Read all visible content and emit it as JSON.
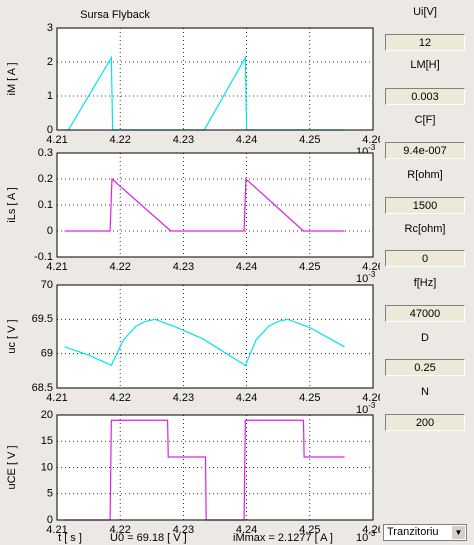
{
  "chart_data": [
    {
      "type": "line",
      "title": "Sursa Flyback",
      "ylabel": "iM [ A ]",
      "color": "#00e5ee",
      "x": [
        4.2112,
        4.2118,
        4.2186,
        4.2188,
        4.2333,
        4.2398,
        4.24,
        4.2555
      ],
      "values": [
        0,
        0,
        2.13,
        0,
        0,
        2.13,
        0,
        0
      ],
      "xlim": [
        4.21,
        4.26
      ],
      "xticks": [
        4.21,
        4.22,
        4.23,
        4.24,
        4.25,
        4.26
      ],
      "ylim": [
        0,
        3
      ],
      "yticks": [
        0,
        1,
        2,
        3
      ],
      "grid": true,
      "x_offset": {
        "base": "10",
        "power": "-3"
      }
    },
    {
      "type": "line",
      "ylabel": "iLs [ A ]",
      "color": "#e020e0",
      "x": [
        4.2112,
        4.2184,
        4.2187,
        4.228,
        4.2396,
        4.2399,
        4.249,
        4.2555
      ],
      "values": [
        0,
        0,
        0.2,
        0,
        0,
        0.2,
        0,
        0
      ],
      "xlim": [
        4.21,
        4.26
      ],
      "xticks": [
        4.21,
        4.22,
        4.23,
        4.24,
        4.25,
        4.26
      ],
      "ylim": [
        -0.1,
        0.3
      ],
      "yticks": [
        -0.1,
        0,
        0.1,
        0.2,
        0.3
      ],
      "grid": true,
      "x_offset": {
        "base": "10",
        "power": "-3"
      }
    },
    {
      "type": "line",
      "ylabel": "uc [ V ]",
      "color": "#00e5ee",
      "x": [
        4.2112,
        4.215,
        4.2186,
        4.2205,
        4.2225,
        4.224,
        4.2255,
        4.229,
        4.233,
        4.2398,
        4.2415,
        4.2435,
        4.245,
        4.2465,
        4.25,
        4.2555
      ],
      "values": [
        69.1,
        68.98,
        68.83,
        69.2,
        69.4,
        69.47,
        69.5,
        69.38,
        69.22,
        68.83,
        69.2,
        69.4,
        69.47,
        69.5,
        69.38,
        69.1
      ],
      "xlim": [
        4.21,
        4.26
      ],
      "xticks": [
        4.21,
        4.22,
        4.23,
        4.24,
        4.25,
        4.26
      ],
      "ylim": [
        68.5,
        70
      ],
      "yticks": [
        68.5,
        69,
        69.5,
        70
      ],
      "grid": true,
      "x_offset": {
        "base": "10",
        "power": "-3"
      }
    },
    {
      "type": "line",
      "ylabel": "uCE [ V ]",
      "color": "#e020e0",
      "x": [
        4.2112,
        4.2184,
        4.2186,
        4.2275,
        4.2276,
        4.2335,
        4.2336,
        4.2396,
        4.2398,
        4.249,
        4.2491,
        4.2555
      ],
      "values": [
        0,
        0,
        19,
        19,
        12,
        12,
        0,
        0,
        19,
        19,
        12,
        12
      ],
      "xlim": [
        4.21,
        4.26
      ],
      "xticks": [
        4.21,
        4.22,
        4.23,
        4.24,
        4.25,
        4.26
      ],
      "ylim": [
        0,
        20
      ],
      "yticks": [
        0,
        5,
        10,
        15,
        20
      ],
      "grid": true,
      "x_offset": {
        "base": "10",
        "power": "-3"
      }
    }
  ],
  "footer": {
    "xlabel": "t [ s ]",
    "u0": "U0 = 69.18 [ V ]",
    "immax": "iMmax = 2.1277 [ A ]"
  },
  "panel": {
    "fields": [
      {
        "label": "Ui[V]",
        "value": "12"
      },
      {
        "label": "LM[H]",
        "value": "0.003"
      },
      {
        "label": "C[F]",
        "value": "9.4e-007"
      },
      {
        "label": "R[ohm]",
        "value": "1500"
      },
      {
        "label": "Rc[ohm]",
        "value": "0"
      },
      {
        "label": "f[Hz]",
        "value": "47000"
      },
      {
        "label": "D",
        "value": "0.25"
      },
      {
        "label": "N",
        "value": "200"
      }
    ],
    "dropdown": "Tranzitoriu"
  }
}
